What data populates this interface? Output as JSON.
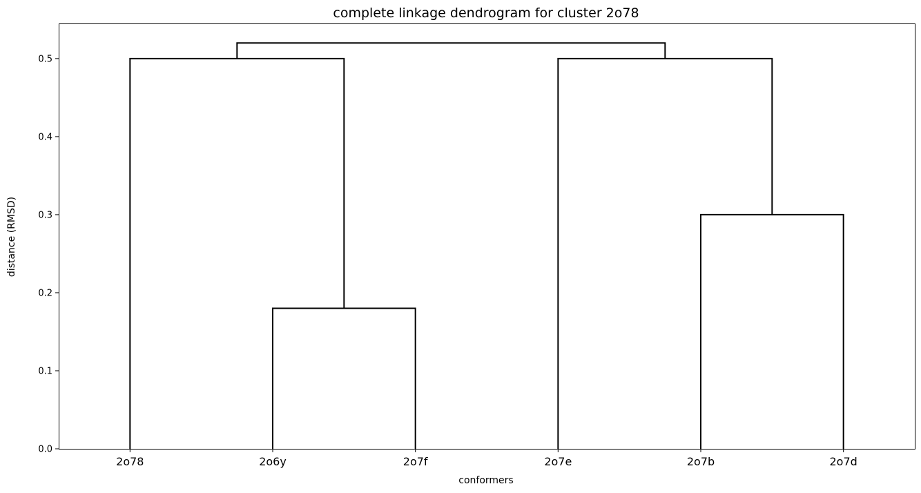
{
  "chart_data": {
    "type": "dendrogram",
    "title": "complete linkage dendrogram for cluster 2o78",
    "xlabel": "conformers",
    "ylabel": "distance (RMSD)",
    "leaves": [
      "2o78",
      "2o6y",
      "2o7f",
      "2o7e",
      "2o7b",
      "2o7d"
    ],
    "ylim": [
      0,
      0.545
    ],
    "yticks": [
      "0.0",
      "0.1",
      "0.2",
      "0.3",
      "0.4",
      "0.5"
    ],
    "grid": false,
    "merges": [
      {
        "left": "2o6y",
        "right": "2o7f",
        "height": 0.18
      },
      {
        "left": "2o78",
        "right": "2o6y+2o7f",
        "height": 0.5
      },
      {
        "left": "2o7b",
        "right": "2o7d",
        "height": 0.3
      },
      {
        "left": "2o7e",
        "right": "2o7b+2o7d",
        "height": 0.5
      },
      {
        "left": "2o78+2o6y+2o7f",
        "right": "2o7e+2o7b+2o7d",
        "height": 0.52
      }
    ],
    "line_color": "#000000"
  }
}
